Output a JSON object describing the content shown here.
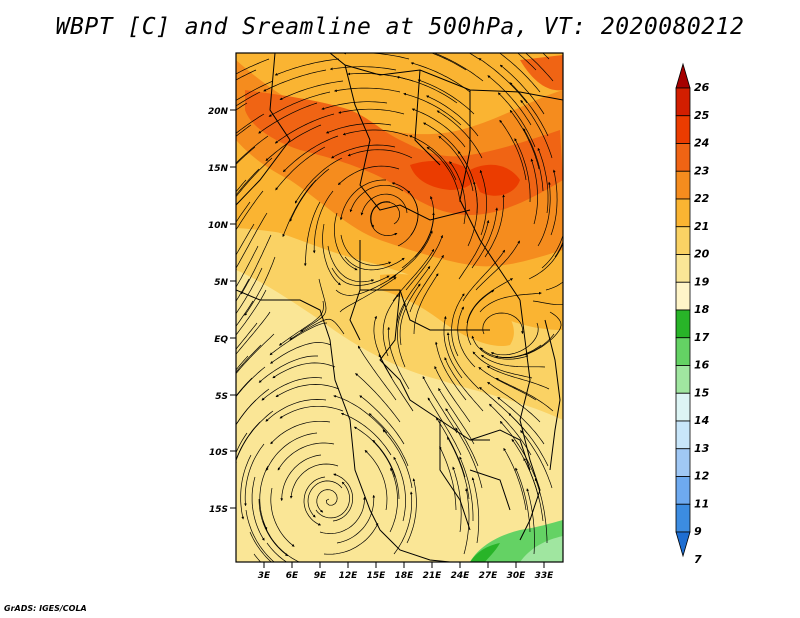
{
  "title": "WBPT [C] and Sreamline at 500hPa, VT: 2020080212",
  "credit": "GrADS: IGES/COLA",
  "map": {
    "variable": "Wet-bulb potential temperature",
    "level": "500hPa",
    "lat_labels": [
      "20N",
      "15N",
      "10N",
      "5N",
      "EQ",
      "5S",
      "10S",
      "15S"
    ],
    "lon_labels": [
      "3E",
      "6E",
      "9E",
      "12E",
      "15E",
      "18E",
      "21E",
      "24E",
      "27E",
      "30E",
      "33E"
    ]
  },
  "colorbar": {
    "levels": [
      "26",
      "25",
      "24",
      "23",
      "22",
      "21",
      "20",
      "19",
      "18",
      "17",
      "16",
      "15",
      "14",
      "13",
      "12",
      "11",
      "9",
      "7"
    ],
    "colors": [
      "#a50000",
      "#d21e00",
      "#eb3c00",
      "#f06414",
      "#f58c1e",
      "#fab432",
      "#fad264",
      "#fae696",
      "#fff5c8",
      "#28b428",
      "#64d264",
      "#a0e6a0",
      "#ddf5f5",
      "#c8e6fa",
      "#a0c8f5",
      "#6eaaf0",
      "#3c8ce1",
      "#1e6ed2"
    ]
  }
}
